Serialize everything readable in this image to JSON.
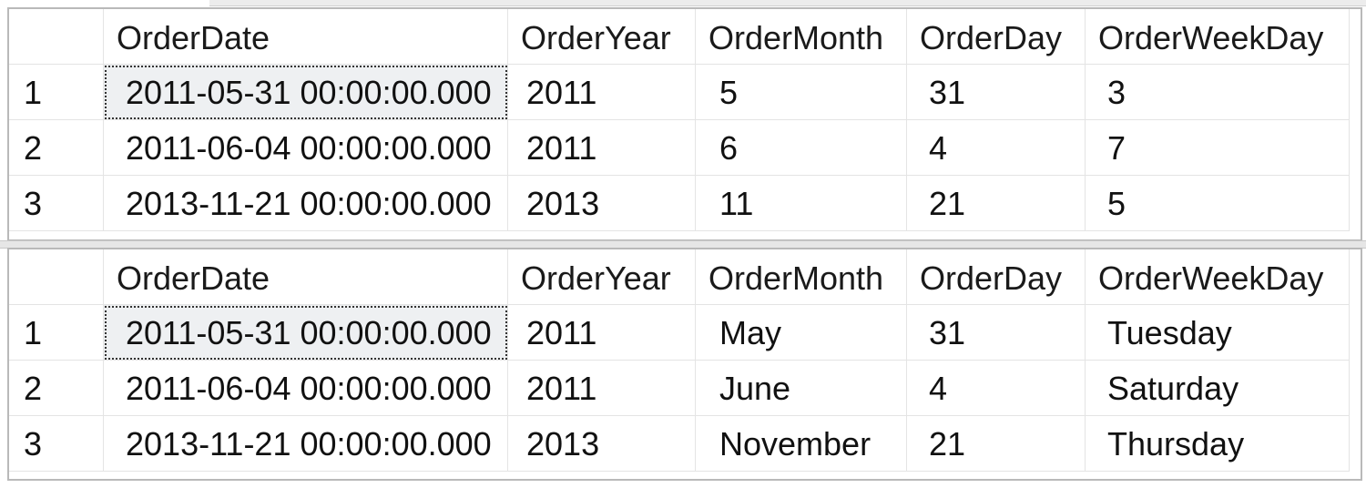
{
  "columns": [
    "OrderDate",
    "OrderYear",
    "OrderMonth",
    "OrderDay",
    "OrderWeekDay"
  ],
  "results_1": {
    "rows": [
      {
        "num": "1",
        "date": "2011-05-31 00:00:00.000",
        "year": "2011",
        "month": "5",
        "day": "31",
        "weekday": "3"
      },
      {
        "num": "2",
        "date": "2011-06-04 00:00:00.000",
        "year": "2011",
        "month": "6",
        "day": "4",
        "weekday": "7"
      },
      {
        "num": "3",
        "date": "2013-11-21 00:00:00.000",
        "year": "2013",
        "month": "11",
        "day": "21",
        "weekday": "5"
      }
    ]
  },
  "results_2": {
    "rows": [
      {
        "num": "1",
        "date": "2011-05-31 00:00:00.000",
        "year": "2011",
        "month": "May",
        "day": "31",
        "weekday": "Tuesday"
      },
      {
        "num": "2",
        "date": "2011-06-04 00:00:00.000",
        "year": "2011",
        "month": "June",
        "day": "4",
        "weekday": "Saturday"
      },
      {
        "num": "3",
        "date": "2013-11-21 00:00:00.000",
        "year": "2013",
        "month": "November",
        "day": "21",
        "weekday": "Thursday"
      }
    ]
  }
}
